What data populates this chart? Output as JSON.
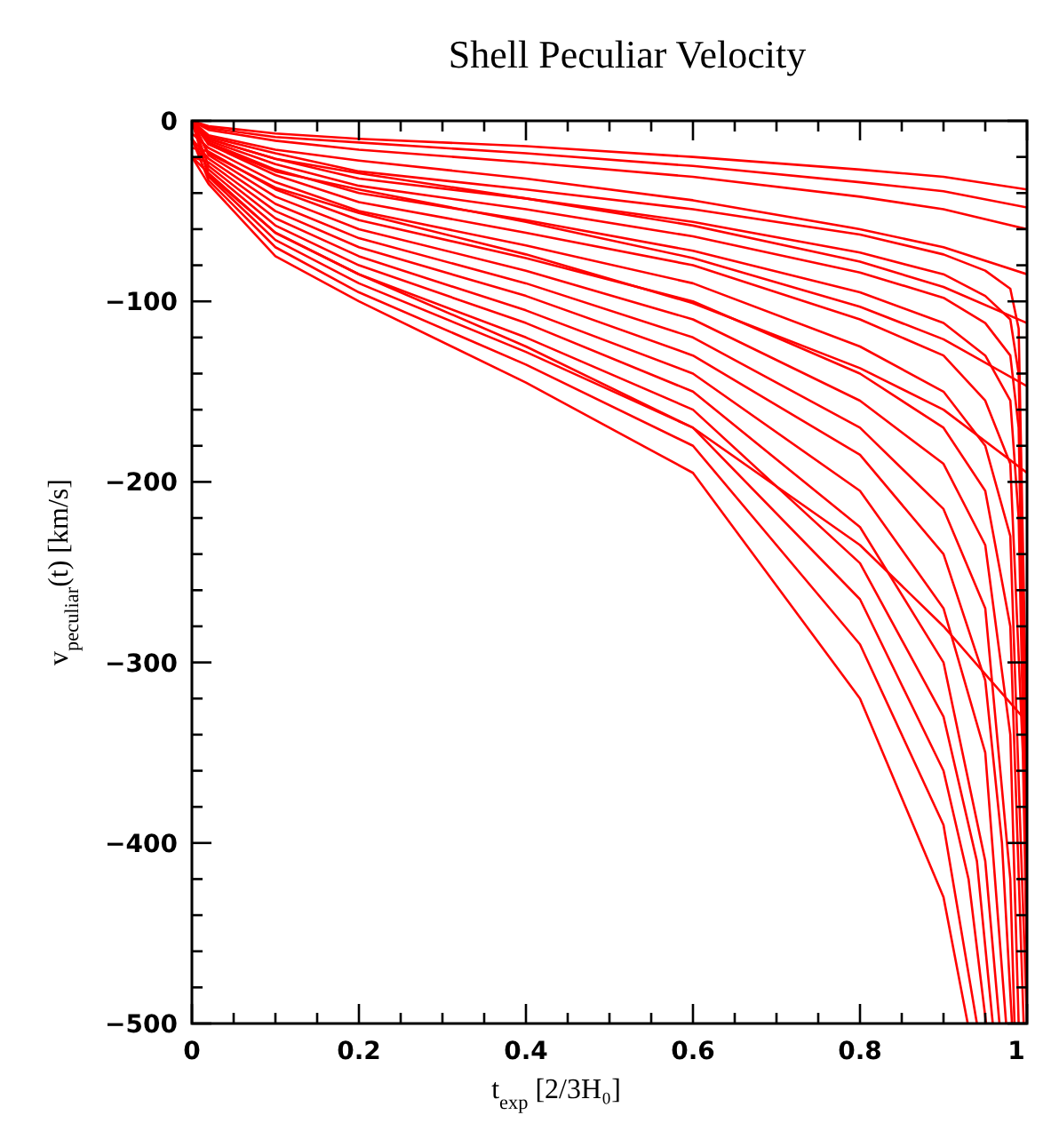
{
  "chart_data": {
    "type": "line",
    "title": "Shell Peculiar Velocity",
    "xlabel": "t$_{exp}$   [2/3H₀]",
    "ylabel": "v$_{peculiar}$(t)   [km/s]",
    "xlim": [
      0,
      1
    ],
    "ylim": [
      -500,
      0
    ],
    "xticks": [
      0,
      {
        "value": 0.05,
        "label": null
      },
      {
        "value": 0.1,
        "label": null
      },
      {
        "value": 0.15,
        "label": null
      },
      0.2,
      {
        "value": 0.25,
        "label": null
      },
      {
        "value": 0.3,
        "label": null
      },
      {
        "value": 0.35,
        "label": null
      },
      0.4,
      {
        "value": 0.45,
        "label": null
      },
      {
        "value": 0.5,
        "label": null
      },
      {
        "value": 0.55,
        "label": null
      },
      0.6,
      {
        "value": 0.65,
        "label": null
      },
      {
        "value": 0.7,
        "label": null
      },
      {
        "value": 0.75,
        "label": null
      },
      0.8,
      {
        "value": 0.85,
        "label": null
      },
      {
        "value": 0.9,
        "label": null
      },
      {
        "value": 0.95,
        "label": null
      },
      1
    ],
    "yticks": [
      -500,
      {
        "value": -480,
        "label": null
      },
      {
        "value": -460,
        "label": null
      },
      {
        "value": -440,
        "label": null
      },
      {
        "value": -420,
        "label": null
      },
      -400,
      {
        "value": -380,
        "label": null
      },
      {
        "value": -360,
        "label": null
      },
      {
        "value": -340,
        "label": null
      },
      {
        "value": -320,
        "label": null
      },
      -300,
      {
        "value": -280,
        "label": null
      },
      {
        "value": -260,
        "label": null
      },
      {
        "value": -240,
        "label": null
      },
      {
        "value": -220,
        "label": null
      },
      -200,
      {
        "value": -180,
        "label": null
      },
      {
        "value": -160,
        "label": null
      },
      {
        "value": -140,
        "label": null
      },
      {
        "value": -120,
        "label": null
      },
      -100,
      {
        "value": -80,
        "label": null
      },
      {
        "value": -60,
        "label": null
      },
      {
        "value": -40,
        "label": null
      },
      {
        "value": -20,
        "label": null
      },
      0
    ],
    "grid": false,
    "marker": "none",
    "line_style": "solid",
    "series": [
      {
        "color": "#ff0000",
        "x": [
          0,
          0.02,
          0.1,
          0.2,
          0.4,
          0.6,
          0.8,
          0.9,
          0.929
        ],
        "values": [
          -20,
          -35,
          -75,
          -100,
          -145,
          -195,
          -320,
          -430,
          -500
        ]
      },
      {
        "color": "#ff0000",
        "x": [
          0,
          0.02,
          0.1,
          0.2,
          0.4,
          0.6,
          0.8,
          0.9,
          0.94
        ],
        "values": [
          -10,
          -33,
          -70,
          -95,
          -135,
          -180,
          -290,
          -390,
          -500
        ]
      },
      {
        "color": "#ff0000",
        "x": [
          0,
          0.02,
          0.1,
          0.2,
          0.4,
          0.6,
          0.8,
          0.9,
          0.93,
          0.951
        ],
        "values": [
          0,
          -31,
          -66,
          -90,
          -128,
          -170,
          -265,
          -360,
          -420,
          -500
        ]
      },
      {
        "color": "#ff0000",
        "x": [
          0,
          0.02,
          0.1,
          0.2,
          0.4,
          0.6,
          0.8,
          0.9,
          0.94,
          0.959
        ],
        "values": [
          -20,
          -29,
          -62,
          -85,
          -120,
          -160,
          -245,
          -330,
          -410,
          -500
        ]
      },
      {
        "color": "#ff0000",
        "x": [
          0,
          0.02,
          0.1,
          0.2,
          0.4,
          0.6,
          0.8,
          0.9,
          0.95,
          0.967
        ],
        "values": [
          -10,
          -27,
          -58,
          -80,
          -112,
          -150,
          -225,
          -300,
          -410,
          -500
        ]
      },
      {
        "color": "#ff0000",
        "x": [
          0,
          0.02,
          0.1,
          0.2,
          0.4,
          0.6,
          0.8,
          0.9,
          0.95,
          0.975
        ],
        "values": [
          0,
          -25,
          -54,
          -75,
          -105,
          -140,
          -205,
          -270,
          -350,
          -500
        ]
      },
      {
        "color": "#ff0000",
        "x": [
          0,
          0.02,
          0.1,
          0.2,
          0.4,
          0.6,
          0.8,
          0.9,
          0.95,
          0.97,
          0.982
        ],
        "values": [
          -20,
          -23,
          -50,
          -70,
          -97,
          -130,
          -185,
          -240,
          -310,
          -400,
          -500
        ]
      },
      {
        "color": "#ff0000",
        "x": [
          0,
          0.02,
          0.1,
          0.2,
          0.4,
          0.6,
          0.8,
          0.9,
          0.95,
          0.98,
          0.985
        ],
        "values": [
          -10,
          -21,
          -46,
          -65,
          -90,
          -120,
          -170,
          -215,
          -270,
          -420,
          -500
        ]
      },
      {
        "color": "#ff0000",
        "x": [
          0,
          0.02,
          0.1,
          0.2,
          0.4,
          0.6,
          0.8,
          0.9,
          0.95,
          0.98,
          0.99
        ],
        "values": [
          0,
          -19,
          -42,
          -60,
          -83,
          -110,
          -155,
          -190,
          -235,
          -340,
          -500
        ]
      },
      {
        "color": "#ff0000",
        "x": [
          0,
          0.02,
          0.1,
          0.2,
          0.4,
          0.6,
          0.8,
          0.9,
          0.95,
          0.98,
          0.996
        ],
        "values": [
          -15,
          -17,
          -38,
          -55,
          -76,
          -100,
          -140,
          -170,
          -205,
          -280,
          -500
        ]
      },
      {
        "color": "#ff0000",
        "x": [
          0,
          0.02,
          0.1,
          0.2,
          0.4,
          0.6,
          0.8,
          0.9,
          0.95,
          0.98,
          1
        ],
        "values": [
          -7,
          -15,
          -34,
          -50,
          -69,
          -90,
          -125,
          -150,
          -180,
          -230,
          -500
        ]
      },
      {
        "color": "#ff0000",
        "x": [
          0,
          0.02,
          0.1,
          0.2,
          0.4,
          0.6,
          0.8,
          0.9,
          0.95,
          0.98,
          0.995,
          1
        ],
        "values": [
          0,
          -13,
          -30,
          -45,
          -62,
          -80,
          -110,
          -130,
          -155,
          -190,
          -350,
          -470
        ]
      },
      {
        "color": "#ff0000",
        "x": [
          0,
          0.02,
          0.1,
          0.2,
          0.4,
          0.6,
          0.8,
          0.9,
          0.95,
          0.98,
          0.99,
          1
        ],
        "values": [
          0,
          -12,
          -27,
          -40,
          -55,
          -72,
          -95,
          -112,
          -130,
          -155,
          -220,
          -440
        ]
      },
      {
        "color": "#ff0000",
        "x": [
          0,
          0.02,
          0.1,
          0.2,
          0.4,
          0.6,
          0.8,
          0.9,
          0.95,
          0.98,
          0.99,
          1
        ],
        "values": [
          0,
          -11,
          -24,
          -36,
          -49,
          -64,
          -84,
          -98,
          -112,
          -130,
          -170,
          -410
        ]
      },
      {
        "color": "#ff0000",
        "x": [
          0,
          0.02,
          0.1,
          0.2,
          0.4,
          0.6,
          0.8,
          0.9,
          0.95,
          0.98,
          0.99,
          1
        ],
        "values": [
          0,
          -10,
          -21,
          -32,
          -43,
          -56,
          -73,
          -85,
          -97,
          -110,
          -140,
          -380
        ]
      },
      {
        "color": "#ff0000",
        "x": [
          0,
          0.02,
          0.1,
          0.2,
          0.4,
          0.6,
          0.8,
          0.9,
          0.95,
          0.98,
          0.99,
          1
        ],
        "values": [
          0,
          -9,
          -18,
          -28,
          -38,
          -49,
          -63,
          -74,
          -83,
          -93,
          -115,
          -350
        ]
      },
      {
        "color": "#ff0000",
        "x": [
          0,
          0.02,
          0.1,
          0.2,
          0.4,
          0.6,
          0.8,
          0.9,
          1
        ],
        "values": [
          0,
          -3,
          -7,
          -10,
          -14,
          -20,
          -27,
          -31,
          -38
        ]
      },
      {
        "color": "#ff0000",
        "x": [
          0,
          0.02,
          0.1,
          0.2,
          0.4,
          0.6,
          0.8,
          0.9,
          1
        ],
        "values": [
          0,
          -4,
          -9,
          -12,
          -18,
          -25,
          -34,
          -39,
          -48
        ]
      },
      {
        "color": "#ff0000",
        "x": [
          0,
          0.02,
          0.1,
          0.2,
          0.4,
          0.6,
          0.8,
          0.9,
          1
        ],
        "values": [
          0,
          -5,
          -11,
          -16,
          -23,
          -31,
          -42,
          -49,
          -60
        ]
      },
      {
        "color": "#ff0000",
        "x": [
          0,
          0.02,
          0.1,
          0.2,
          0.4,
          0.6,
          0.8,
          0.9,
          1
        ],
        "values": [
          0,
          -8,
          -16,
          -22,
          -32,
          -44,
          -60,
          -70,
          -85
        ]
      },
      {
        "color": "#ff0000",
        "x": [
          0,
          0.02,
          0.1,
          0.2,
          0.4,
          0.6,
          0.8,
          0.9,
          1
        ],
        "values": [
          0,
          -10,
          -21,
          -29,
          -43,
          -58,
          -78,
          -92,
          -112
        ]
      },
      {
        "color": "#ff0000",
        "x": [
          0,
          0.02,
          0.1,
          0.2,
          0.4,
          0.6,
          0.8,
          0.9,
          1
        ],
        "values": [
          0,
          -13,
          -28,
          -38,
          -56,
          -76,
          -103,
          -121,
          -147
        ]
      },
      {
        "color": "#ff0000",
        "x": [
          0,
          0.02,
          0.1,
          0.2,
          0.4,
          0.6,
          0.8,
          0.9,
          1
        ],
        "values": [
          0,
          -18,
          -37,
          -51,
          -74,
          -101,
          -137,
          -160,
          -195
        ]
      },
      {
        "color": "#ff0000",
        "x": [
          0,
          0.02,
          0.1,
          0.2,
          0.4,
          0.6,
          0.8,
          0.9,
          1
        ],
        "values": [
          0,
          -30,
          -62,
          -85,
          -125,
          -170,
          -235,
          -280,
          -333
        ]
      }
    ]
  }
}
